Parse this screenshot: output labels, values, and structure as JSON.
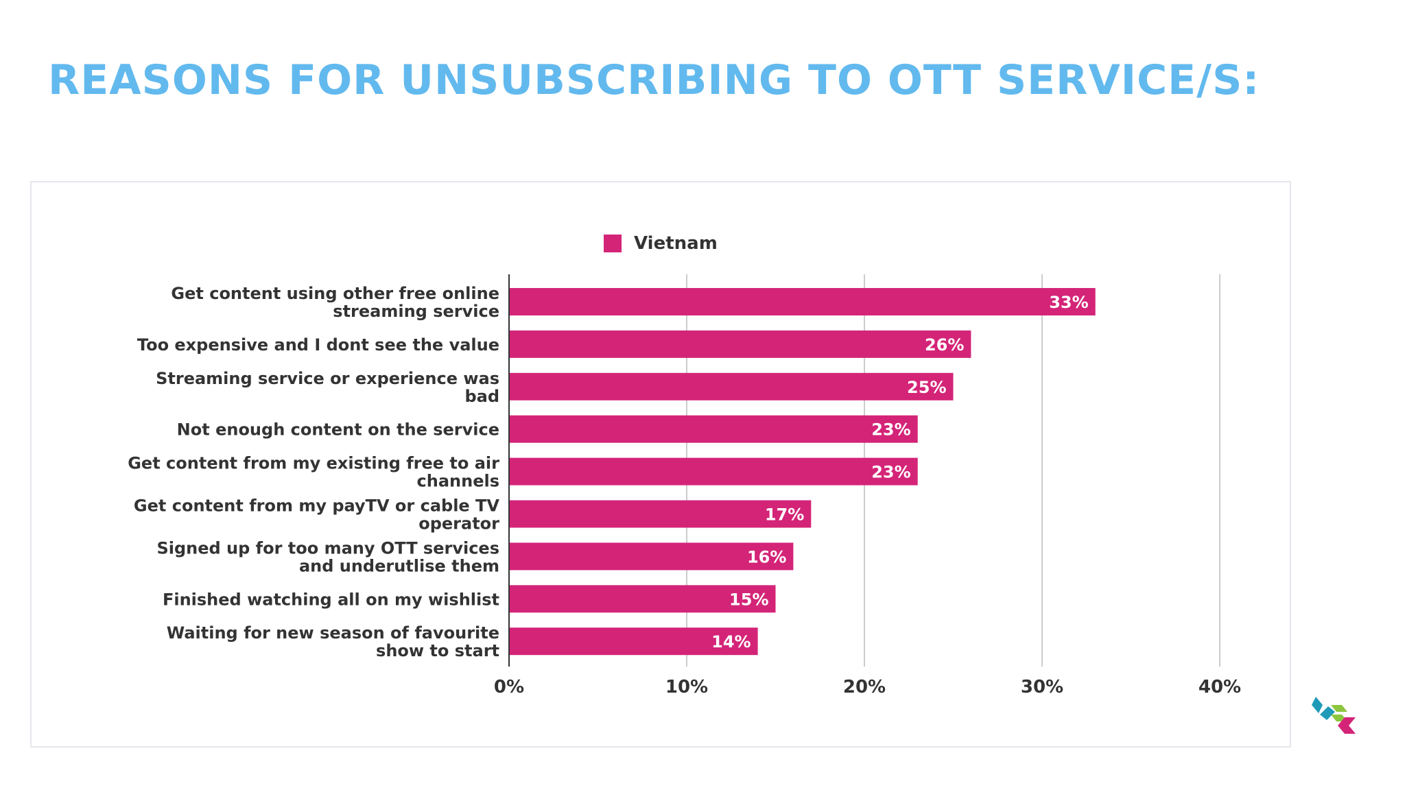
{
  "title": "REASONS FOR UNSUBSCRIBING TO OTT SERVICE/S:",
  "colors": {
    "title": "#62b9ee",
    "bar": "#d42478",
    "grid": "#cccccc",
    "axis": "#333333",
    "label": "#333333"
  },
  "logo": {
    "icon": "cube-logo-icon"
  },
  "chart_data": {
    "type": "bar",
    "orientation": "horizontal",
    "legend_position": "top-center",
    "grid": true,
    "categories": [
      [
        "Get content using other free online",
        "streaming service"
      ],
      [
        "Too expensive and I dont see the value"
      ],
      [
        "Streaming service or experience was",
        "bad"
      ],
      [
        "Not enough content on the service"
      ],
      [
        "Get content from my existing free to air",
        "channels"
      ],
      [
        "Get content from my payTV or cable TV",
        "operator"
      ],
      [
        "Signed up for too many OTT services",
        "and underutlise them"
      ],
      [
        "Finished watching all on my wishlist"
      ],
      [
        "Waiting for new season of favourite",
        "show to start"
      ]
    ],
    "series": [
      {
        "name": "Vietnam",
        "values": [
          33,
          26,
          25,
          23,
          23,
          17,
          16,
          15,
          14
        ]
      }
    ],
    "data_labels": [
      "33%",
      "26%",
      "25%",
      "23%",
      "23%",
      "17%",
      "16%",
      "15%",
      "14%"
    ],
    "xlim": [
      0,
      40
    ],
    "xticks": [
      0,
      10,
      20,
      30,
      40
    ],
    "xtick_labels": [
      "0%",
      "10%",
      "20%",
      "30%",
      "40%"
    ]
  }
}
